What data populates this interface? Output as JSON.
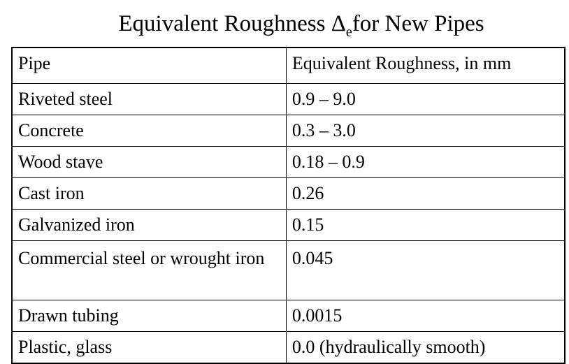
{
  "title": {
    "prefix": "Equivalent Roughness ",
    "symbol": "Δ",
    "subscript": "e",
    "suffix": "for New Pipes"
  },
  "table": {
    "headers": [
      "Pipe",
      "Equivalent Roughness, in mm"
    ],
    "rows": [
      {
        "pipe": "Riveted steel",
        "roughness": "0.9 – 9.0"
      },
      {
        "pipe": "Concrete",
        "roughness": "0.3 – 3.0"
      },
      {
        "pipe": "Wood stave",
        "roughness": "0.18 – 0.9"
      },
      {
        "pipe": "Cast iron",
        "roughness": "0.26"
      },
      {
        "pipe": "Galvanized iron",
        "roughness": "0.15"
      },
      {
        "pipe": "Commercial steel or wrought iron",
        "roughness": "0.045"
      },
      {
        "pipe": "Drawn tubing",
        "roughness": "0.0015"
      },
      {
        "pipe": "Plastic, glass",
        "roughness": "0.0 (hydraulically smooth)"
      }
    ]
  }
}
